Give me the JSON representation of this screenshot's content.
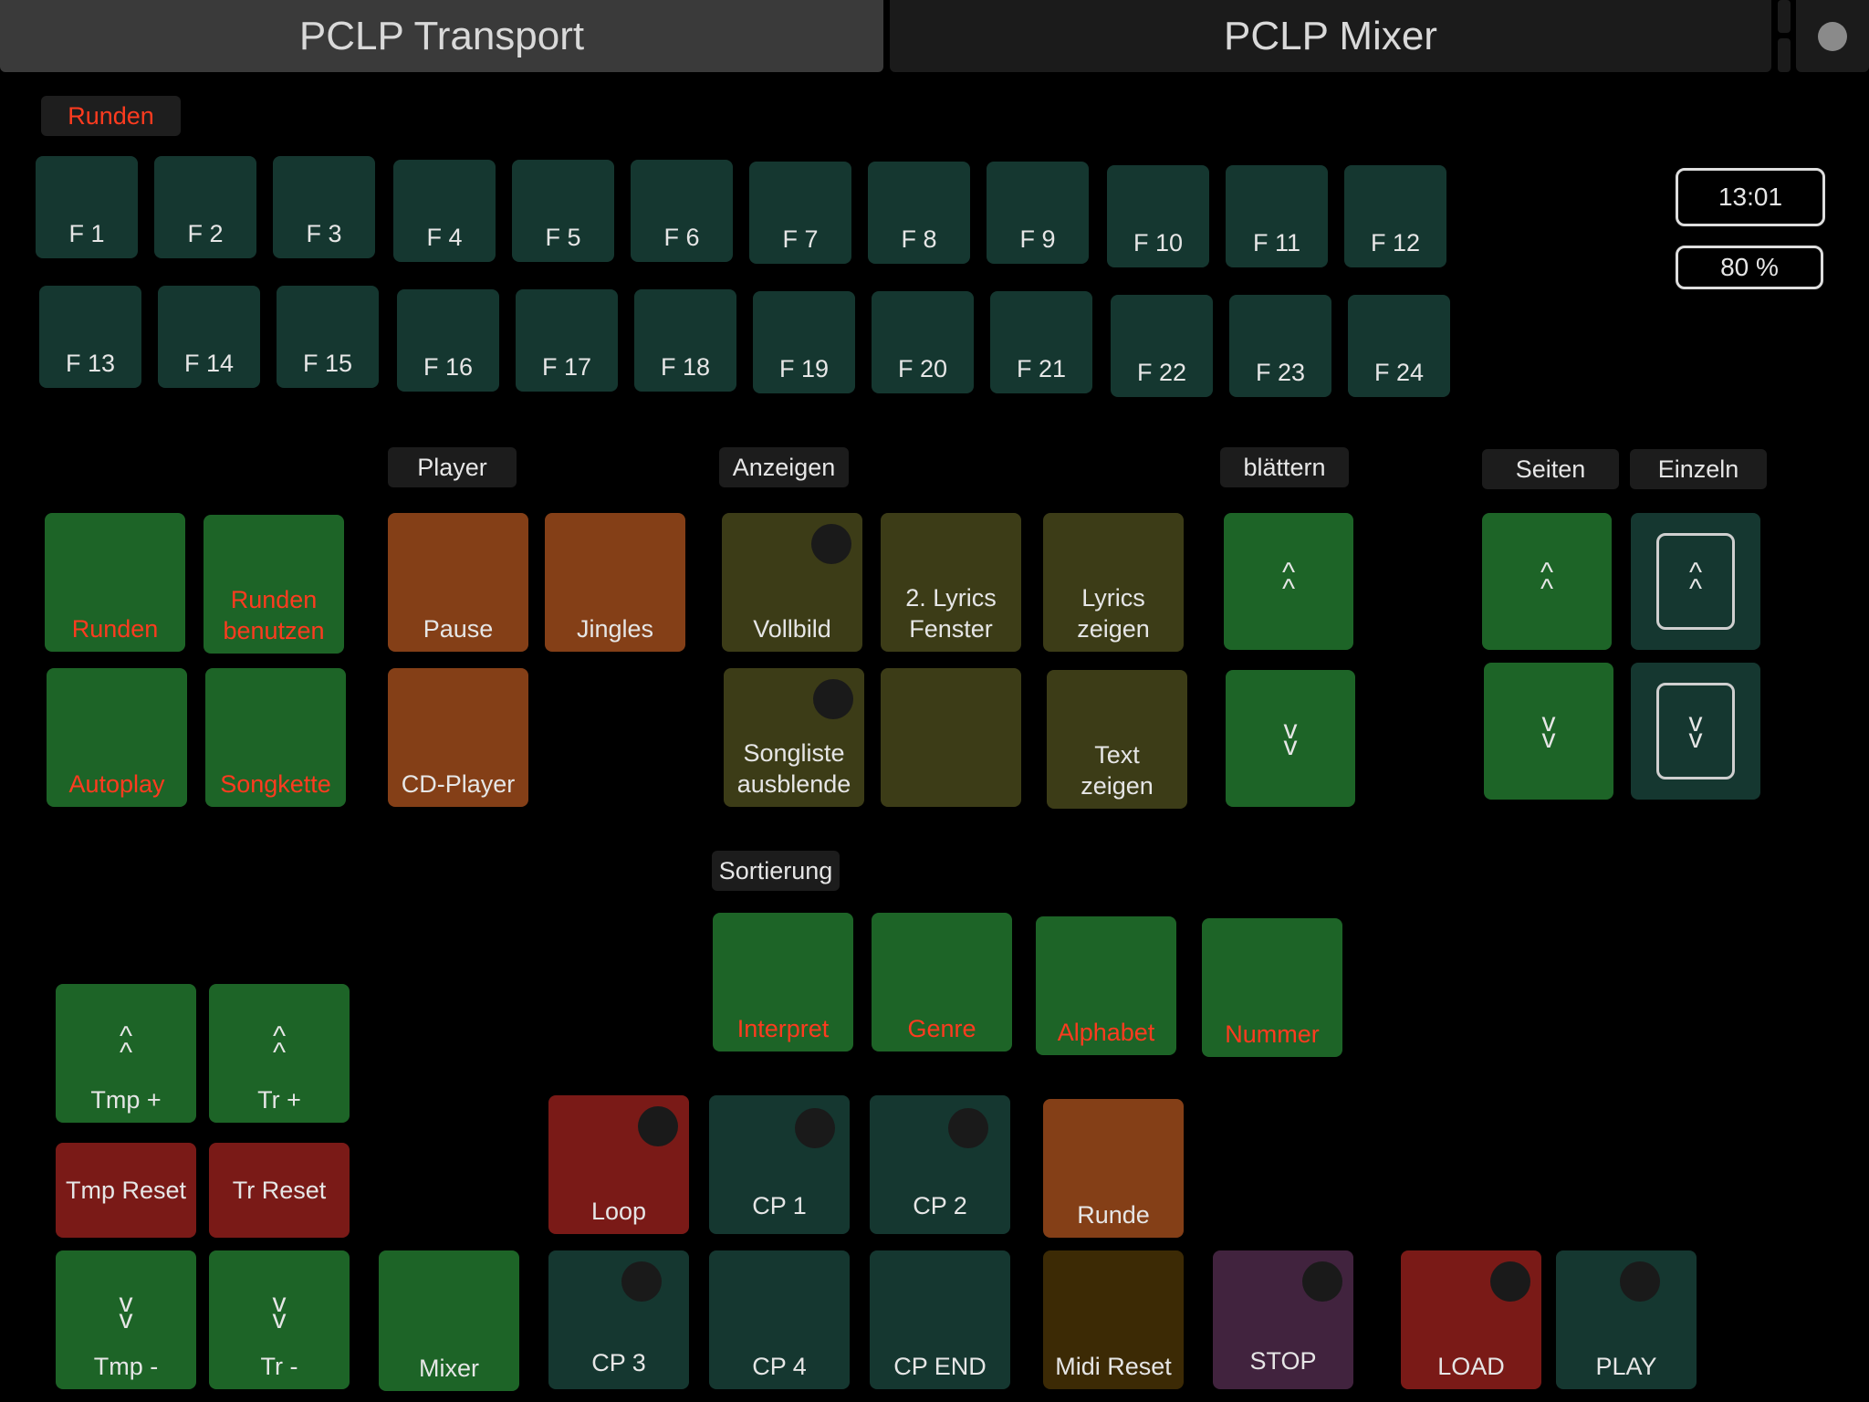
{
  "tabs": {
    "transport": "PCLP Transport",
    "mixer": "PCLP Mixer"
  },
  "labels": {
    "runden": "Runden",
    "player": "Player",
    "anzeigen": "Anzeigen",
    "blaettern": "blättern",
    "seiten": "Seiten",
    "einzeln": "Einzeln",
    "sortierung": "Sortierung"
  },
  "readouts": {
    "time": "13:01",
    "percent": "80 %"
  },
  "fkeys": [
    "F 1",
    "F 2",
    "F 3",
    "F 4",
    "F 5",
    "F 6",
    "F 7",
    "F 8",
    "F 9",
    "F 10",
    "F 11",
    "F 12",
    "F 13",
    "F 14",
    "F 15",
    "F 16",
    "F 17",
    "F 18",
    "F 19",
    "F 20",
    "F 21",
    "F 22",
    "F 23",
    "F 24"
  ],
  "buttons": {
    "runden": "Runden",
    "runden_benutzen_1": "Runden",
    "runden_benutzen_2": "benutzen",
    "autoplay": "Autoplay",
    "songkette": "Songkette",
    "pause": "Pause",
    "jingles": "Jingles",
    "cd_player": "CD-Player",
    "vollbild": "Vollbild",
    "lyrics_fenster_1": "2. Lyrics",
    "lyrics_fenster_2": "Fenster",
    "lyrics_zeigen_1": "Lyrics",
    "lyrics_zeigen_2": "zeigen",
    "songliste_1": "Songliste",
    "songliste_2": "ausblende",
    "text_zeigen_1": "Text",
    "text_zeigen_2": "zeigen",
    "interpret": "Interpret",
    "genre": "Genre",
    "alphabet": "Alphabet",
    "nummer": "Nummer",
    "tmp_plus": "Tmp +",
    "tr_plus": "Tr +",
    "tmp_reset": "Tmp Reset",
    "tr_reset": "Tr Reset",
    "tmp_minus": "Tmp -",
    "tr_minus": "Tr -",
    "mixer": "Mixer",
    "loop": "Loop",
    "cp1": "CP 1",
    "cp2": "CP 2",
    "runde": "Runde",
    "cp3": "CP 3",
    "cp4": "CP 4",
    "cp_end": "CP END",
    "midi_reset": "Midi Reset",
    "stop": "STOP",
    "load": "LOAD",
    "play": "PLAY"
  },
  "icons": {
    "up": "^\n^",
    "down": "v\nv"
  },
  "colors": {
    "accent_text": "#ff3b1f",
    "green": "#1d6427",
    "orange": "#843f17",
    "teal": "#153730"
  }
}
